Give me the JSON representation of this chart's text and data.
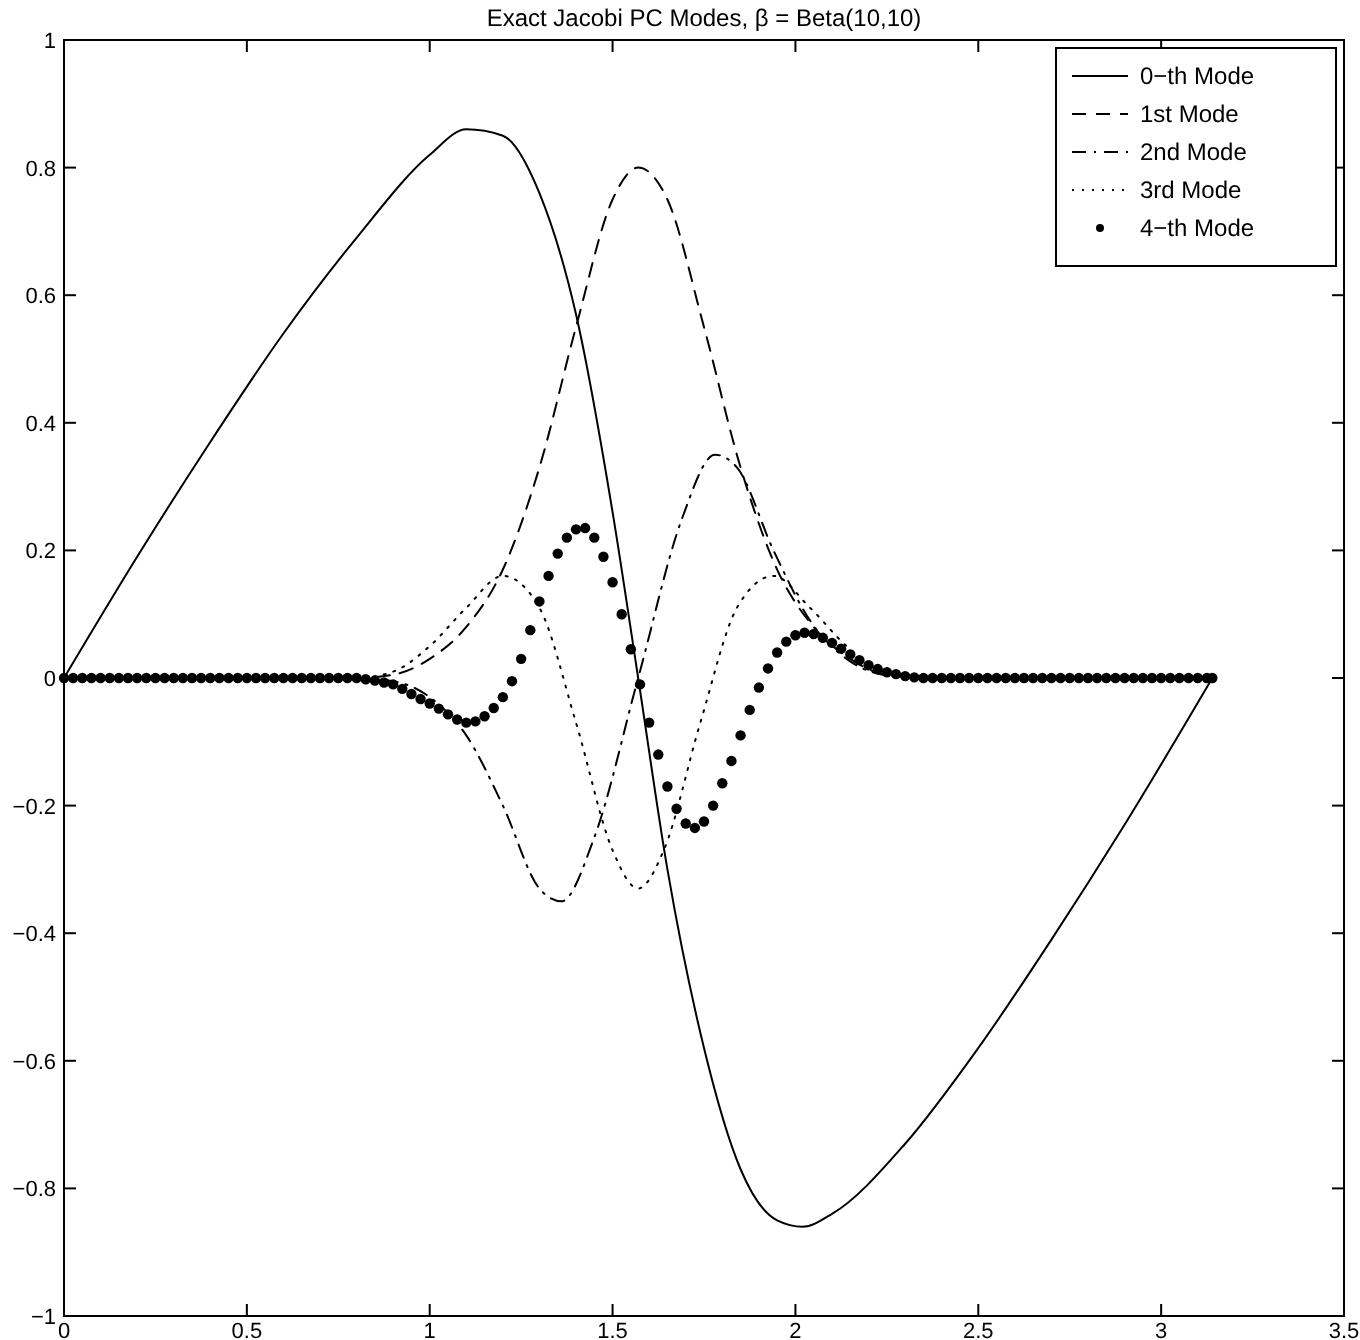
{
  "chart_data": {
    "type": "line",
    "title": "Exact Jacobi PC Modes,  β = Beta(10,10)",
    "xlim": [
      0,
      3.5
    ],
    "xticks": [
      0,
      0.5,
      1,
      1.5,
      2,
      2.5,
      3,
      3.5
    ],
    "ylim": [
      -1,
      1
    ],
    "yticks": [
      -1,
      -0.8,
      -0.6,
      -0.4,
      -0.2,
      0,
      0.2,
      0.4,
      0.6,
      0.8,
      1
    ],
    "legend": "top right",
    "series": [
      {
        "name": "0−th Mode",
        "color": "#000000",
        "line_style": "solid",
        "x": [
          0,
          0.2,
          0.4,
          0.6,
          0.8,
          1.0,
          1.1,
          1.2,
          1.3,
          1.4,
          1.5,
          1.57,
          1.65,
          1.75,
          1.85,
          1.95,
          2.02,
          2.1,
          2.3,
          2.5,
          2.7,
          2.9,
          3.14
        ],
        "values": [
          0,
          0.19,
          0.37,
          0.54,
          0.69,
          0.82,
          0.86,
          0.85,
          0.76,
          0.57,
          0.26,
          0,
          -0.3,
          -0.58,
          -0.77,
          -0.85,
          -0.86,
          -0.84,
          -0.73,
          -0.58,
          -0.41,
          -0.23,
          0
        ]
      },
      {
        "name": "1st Mode",
        "color": "#000000",
        "line_style": "dashed",
        "x": [
          0,
          0.8,
          0.9,
          1.0,
          1.1,
          1.2,
          1.3,
          1.4,
          1.5,
          1.57,
          1.65,
          1.75,
          1.85,
          1.95,
          2.05,
          2.15,
          2.25,
          2.4,
          3.14
        ],
        "values": [
          0,
          0,
          0.005,
          0.03,
          0.08,
          0.17,
          0.33,
          0.55,
          0.75,
          0.8,
          0.75,
          0.55,
          0.33,
          0.17,
          0.08,
          0.03,
          0.005,
          0,
          0
        ]
      },
      {
        "name": "2nd Mode",
        "color": "#000000",
        "line_style": "dashdot",
        "x": [
          0,
          0.8,
          0.9,
          1.0,
          1.1,
          1.2,
          1.3,
          1.36,
          1.45,
          1.57,
          1.69,
          1.78,
          1.84,
          1.94,
          2.04,
          2.14,
          2.24,
          2.35,
          3.14
        ],
        "values": [
          0,
          0,
          -0.005,
          -0.03,
          -0.09,
          -0.2,
          -0.33,
          -0.35,
          -0.25,
          0,
          0.25,
          0.35,
          0.33,
          0.2,
          0.09,
          0.03,
          0.005,
          0,
          0
        ]
      },
      {
        "name": "3rd Mode",
        "color": "#000000",
        "line_style": "dotted",
        "x": [
          0,
          0.8,
          0.9,
          1.0,
          1.1,
          1.2,
          1.3,
          1.4,
          1.5,
          1.57,
          1.64,
          1.74,
          1.84,
          1.94,
          2.04,
          2.14,
          2.24,
          2.34,
          3.14
        ],
        "values": [
          0,
          0,
          0.01,
          0.05,
          0.11,
          0.16,
          0.11,
          -0.07,
          -0.27,
          -0.33,
          -0.27,
          -0.07,
          0.11,
          0.16,
          0.11,
          0.05,
          0.01,
          0,
          0
        ]
      },
      {
        "name": "4−th Mode",
        "type": "scatter",
        "marker": "circle",
        "color": "#000000",
        "x": [
          0,
          0.025,
          0.05,
          0.075,
          0.1,
          0.125,
          0.15,
          0.175,
          0.2,
          0.225,
          0.25,
          0.275,
          0.3,
          0.325,
          0.35,
          0.375,
          0.4,
          0.425,
          0.45,
          0.475,
          0.5,
          0.525,
          0.55,
          0.575,
          0.6,
          0.625,
          0.65,
          0.675,
          0.7,
          0.725,
          0.75,
          0.775,
          0.8,
          0.825,
          0.85,
          0.875,
          0.9,
          0.925,
          0.95,
          0.975,
          1.0,
          1.025,
          1.05,
          1.075,
          1.1,
          1.125,
          1.15,
          1.175,
          1.2,
          1.225,
          1.25,
          1.275,
          1.3,
          1.325,
          1.35,
          1.375,
          1.4,
          1.425,
          1.45,
          1.475,
          1.5,
          1.525,
          1.55,
          1.575,
          1.6,
          1.625,
          1.65,
          1.675,
          1.7,
          1.725,
          1.75,
          1.775,
          1.8,
          1.825,
          1.85,
          1.875,
          1.9,
          1.925,
          1.95,
          1.975,
          2.0,
          2.025,
          2.05,
          2.075,
          2.1,
          2.125,
          2.15,
          2.175,
          2.2,
          2.225,
          2.25,
          2.275,
          2.3,
          2.325,
          2.35,
          2.375,
          2.4,
          2.425,
          2.45,
          2.475,
          2.5,
          2.525,
          2.55,
          2.575,
          2.6,
          2.625,
          2.65,
          2.675,
          2.7,
          2.725,
          2.75,
          2.775,
          2.8,
          2.825,
          2.85,
          2.875,
          2.9,
          2.925,
          2.95,
          2.975,
          3.0,
          3.025,
          3.05,
          3.075,
          3.1,
          3.125,
          3.14
        ],
        "values": [
          0,
          0,
          0,
          0,
          0,
          0,
          0,
          0,
          0,
          0,
          0,
          0,
          0,
          0,
          0,
          0,
          0,
          0,
          0,
          0,
          0,
          0,
          0,
          0,
          0,
          0,
          0,
          0,
          0,
          0,
          0,
          0,
          0,
          -0.002,
          -0.004,
          -0.007,
          -0.01,
          -0.017,
          -0.025,
          -0.033,
          -0.04,
          -0.048,
          -0.057,
          -0.065,
          -0.07,
          -0.068,
          -0.06,
          -0.047,
          -0.03,
          -0.005,
          0.03,
          0.075,
          0.12,
          0.16,
          0.195,
          0.22,
          0.233,
          0.235,
          0.22,
          0.19,
          0.15,
          0.1,
          0.045,
          -0.01,
          -0.07,
          -0.12,
          -0.17,
          -0.205,
          -0.228,
          -0.235,
          -0.225,
          -0.2,
          -0.165,
          -0.13,
          -0.09,
          -0.05,
          -0.015,
          0.015,
          0.04,
          0.057,
          0.067,
          0.071,
          0.069,
          0.063,
          0.055,
          0.046,
          0.037,
          0.028,
          0.02,
          0.014,
          0.009,
          0.006,
          0.003,
          0.001,
          0,
          0,
          0,
          0,
          0,
          0,
          0,
          0,
          0,
          0,
          0,
          0,
          0,
          0,
          0,
          0,
          0,
          0,
          0,
          0,
          0,
          0,
          0,
          0,
          0,
          0,
          0,
          0,
          0,
          0,
          0,
          0,
          0
        ]
      }
    ]
  }
}
